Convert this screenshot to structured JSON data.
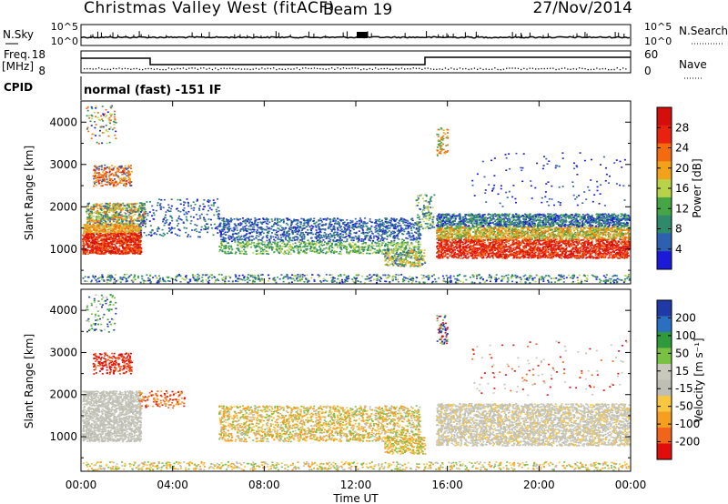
{
  "header": {
    "site": "Christmas Valley West (fitACF)",
    "beam": "Beam 19",
    "date": "27/Nov/2014"
  },
  "noise_panel": {
    "left_label": "N.Sky",
    "right_label": "N.Search",
    "left_ticks": [
      "10^5",
      "10^0"
    ],
    "right_ticks": [
      "10^5",
      "10^0"
    ]
  },
  "freq_panel": {
    "left_label_line1": "Freq.",
    "left_label_line2": "[MHz]",
    "left_ticks": [
      "18",
      "8"
    ],
    "right_label": "Nave",
    "right_ticks": [
      "60",
      "0"
    ]
  },
  "cpid": {
    "label": "CPID",
    "text": "normal (fast) -151 IF"
  },
  "colors": {
    "power_scale": [
      "#1a1ad8",
      "#2f5fb0",
      "#2e8a6a",
      "#46a646",
      "#b8d24a",
      "#f2a21a",
      "#f36a10",
      "#e8220e",
      "#d40d0d"
    ],
    "velocity_scale": [
      "#e10c0c",
      "#f0641c",
      "#f59e22",
      "#f8c640",
      "#bebeb4",
      "#c8c8bc",
      "#79c143",
      "#2e9a3c",
      "#2b6fc0",
      "#1f3aa6"
    ]
  },
  "chart_data": [
    {
      "type": "heatmap",
      "title": "Power",
      "ylabel": "Slant Range [km]",
      "xlabel": "",
      "x_range_hours": [
        0,
        24
      ],
      "ylim": [
        180,
        4500
      ],
      "yticks": [
        1000,
        2000,
        3000,
        4000
      ],
      "colorbar": {
        "label": "Power [dB]",
        "ticks": [
          "4",
          "8",
          "12",
          "16",
          "20",
          "24",
          "28"
        ],
        "range": [
          0,
          30
        ]
      },
      "features": [
        {
          "t": [
            0.0,
            2.5
          ],
          "range_km": [
            900,
            2100
          ],
          "level": "strong"
        },
        {
          "t": [
            0.5,
            2.0
          ],
          "range_km": [
            2500,
            3000
          ],
          "level": "strong"
        },
        {
          "t": [
            6.0,
            14.5
          ],
          "range_km": [
            900,
            1800
          ],
          "level": "weak"
        },
        {
          "t": [
            15.5,
            24.0
          ],
          "range_km": [
            800,
            1800
          ],
          "level": "strong"
        }
      ]
    },
    {
      "type": "heatmap",
      "title": "Velocity",
      "ylabel": "Slant Range [km]",
      "xlabel": "Time UT",
      "x_range_hours": [
        0,
        24
      ],
      "ylim": [
        180,
        4500
      ],
      "yticks": [
        1000,
        2000,
        3000,
        4000
      ],
      "xticks": [
        "00:00",
        "04:00",
        "08:00",
        "12:00",
        "16:00",
        "20:00",
        "00:00"
      ],
      "colorbar": {
        "label": "Velocity [m s⁻¹]",
        "ticks": [
          "200",
          "100",
          "50",
          "15",
          "-15",
          "-50",
          "-100",
          "-200"
        ]
      }
    }
  ]
}
